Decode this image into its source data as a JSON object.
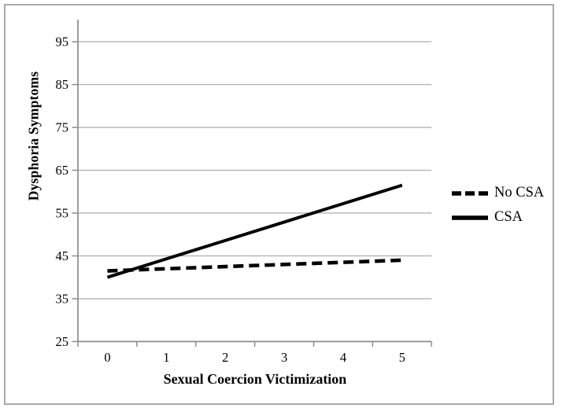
{
  "figure": {
    "background": "#ffffff",
    "border_color": "#a9a9a9"
  },
  "colors": {
    "series_line": "#000000",
    "gridline": "#b3b3b3",
    "axis": "#8c8c8c",
    "text": "#000000"
  },
  "legend": {
    "entries": [
      {
        "label": "No CSA",
        "style": "dashed"
      },
      {
        "label": "CSA",
        "style": "solid"
      }
    ]
  },
  "chart_data": {
    "type": "line",
    "title": "",
    "xlabel": "Sexual Coercion Victimization",
    "ylabel": "Dysphoria Symptoms",
    "categories": [
      "0",
      "1",
      "2",
      "3",
      "4",
      "5"
    ],
    "y_ticks": [
      25,
      35,
      45,
      55,
      65,
      75,
      85,
      95
    ],
    "ylim": [
      25,
      100
    ],
    "grid": "horizontal-only",
    "legend_position": "right-middle",
    "series": [
      {
        "name": "No CSA",
        "style": "dashed",
        "color": "#000000",
        "values": [
          41.5,
          42.0,
          42.5,
          43.0,
          43.5,
          44.0
        ]
      },
      {
        "name": "CSA",
        "style": "solid",
        "color": "#000000",
        "values": [
          40.0,
          44.3,
          48.6,
          52.9,
          57.2,
          61.5
        ]
      }
    ]
  }
}
